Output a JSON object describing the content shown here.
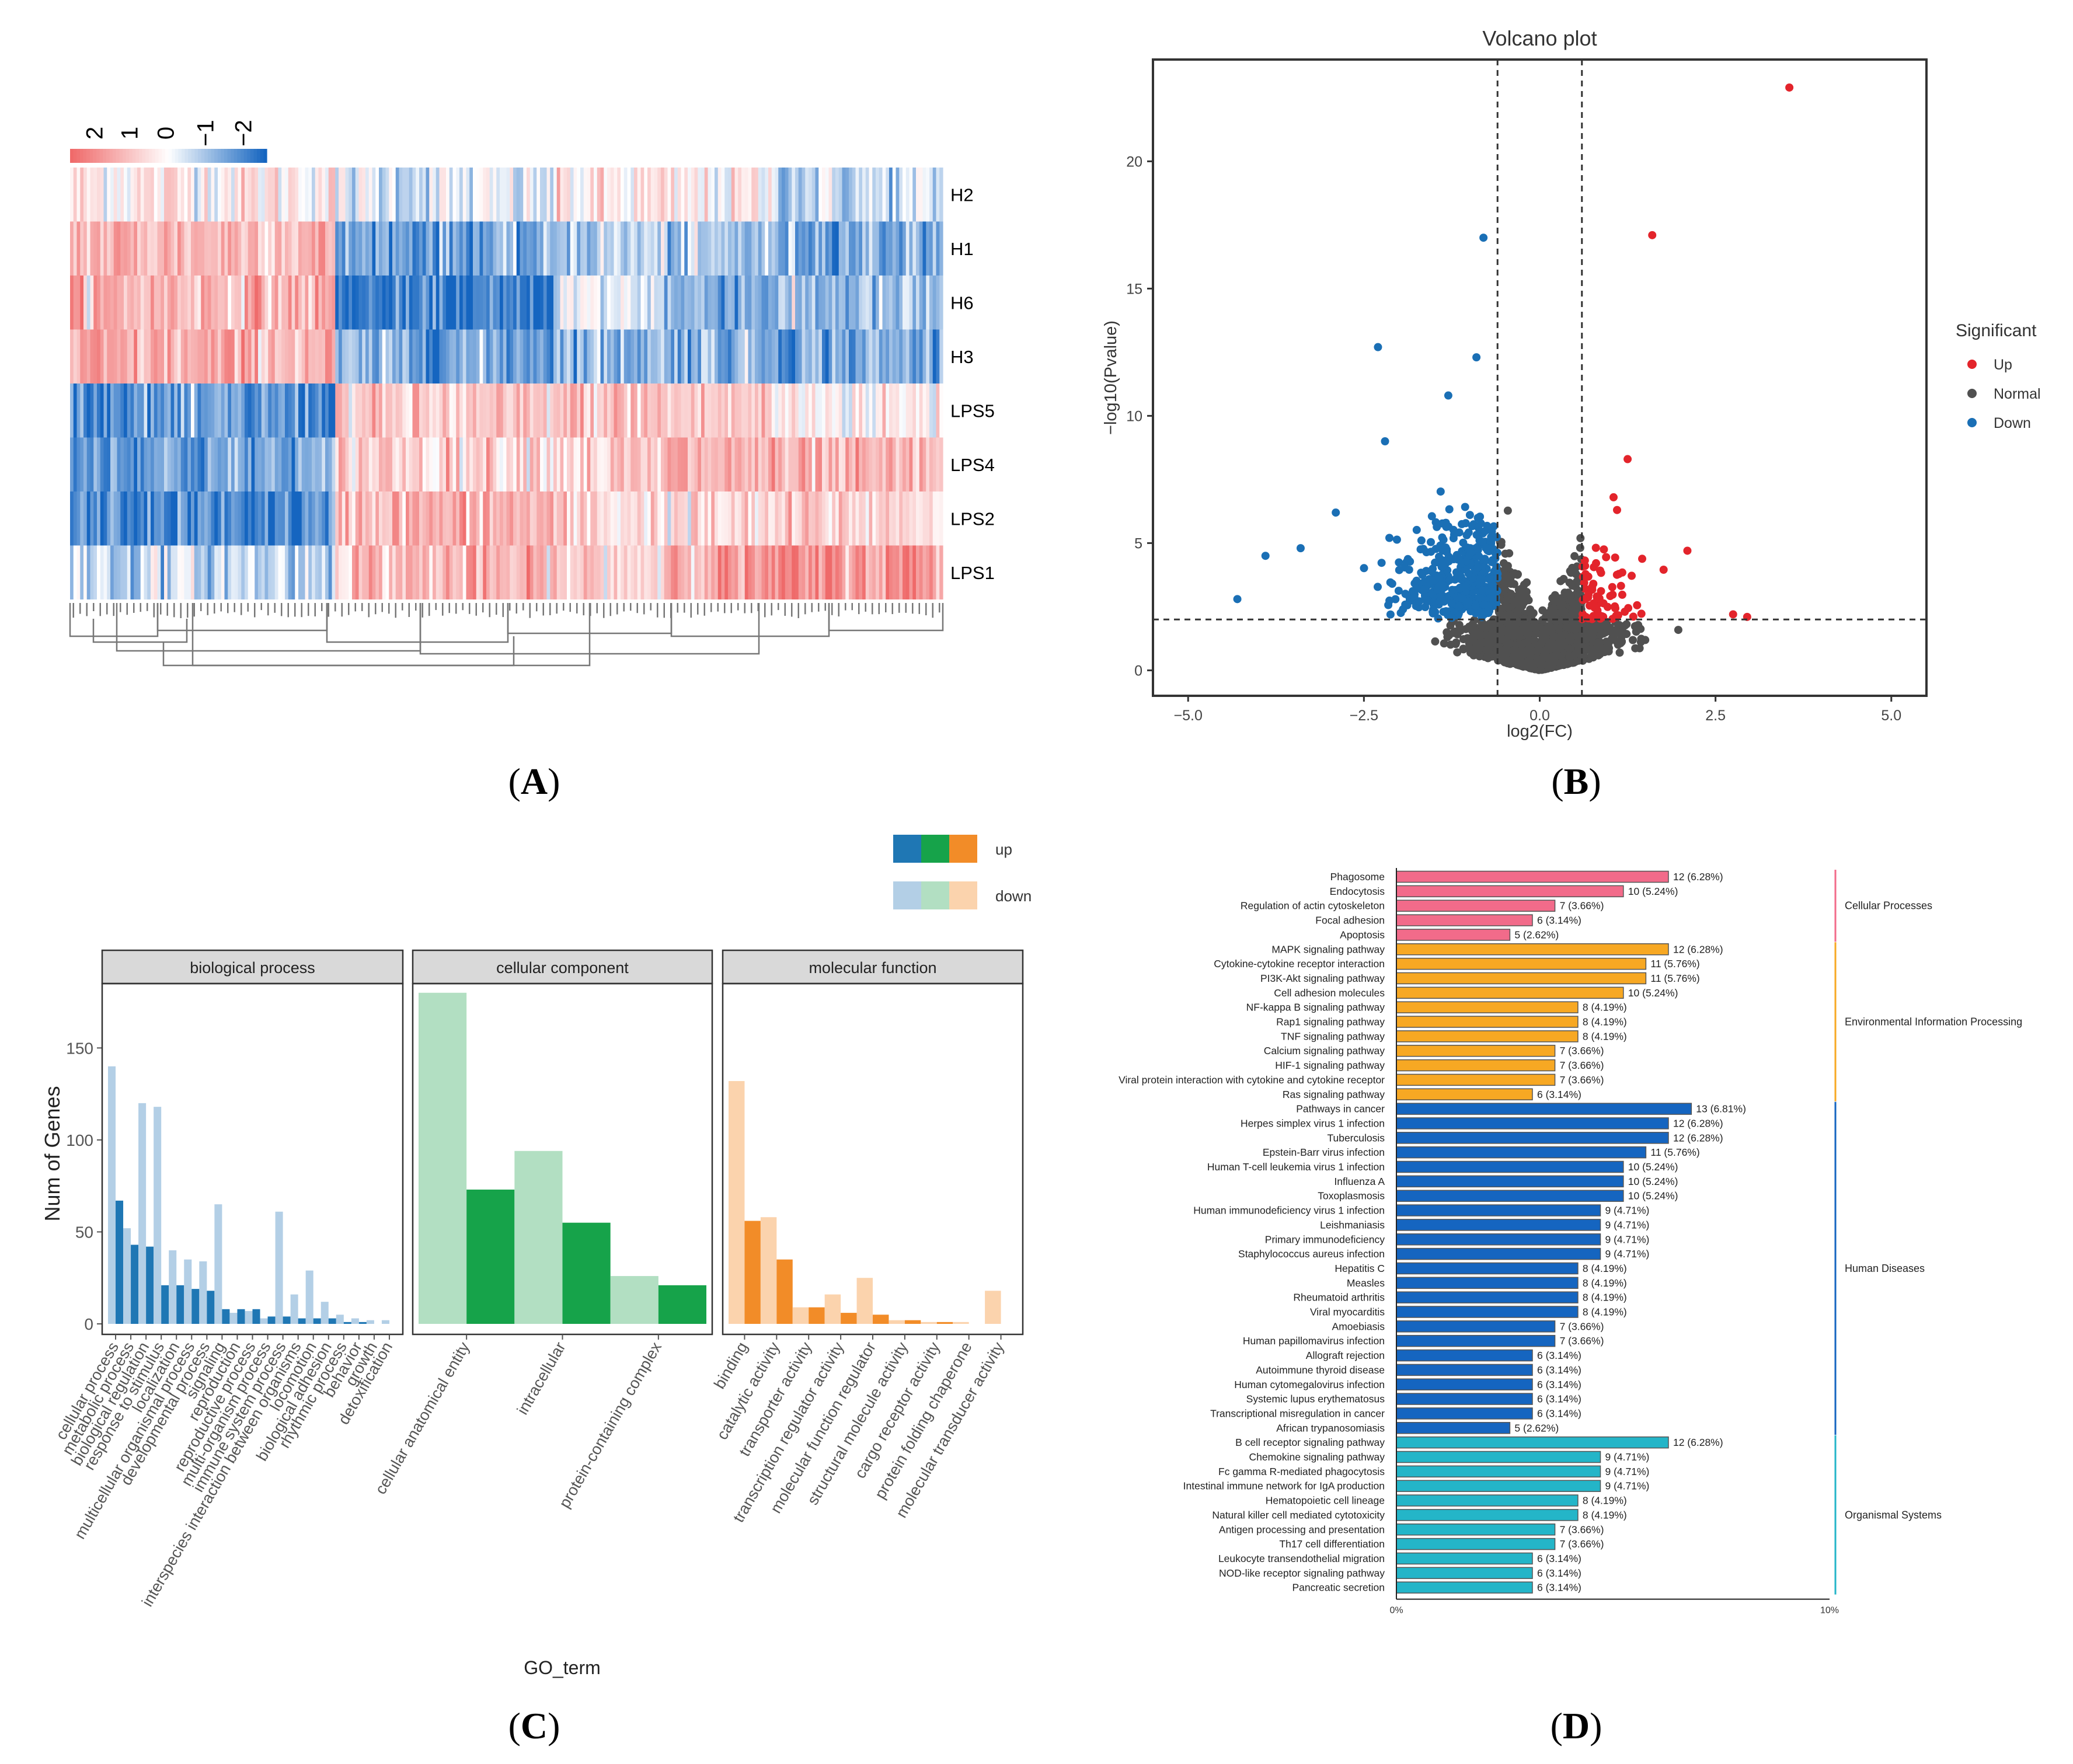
{
  "panel_labels": {
    "a": "A",
    "b": "B",
    "c": "C",
    "d": "D"
  },
  "colors": {
    "up": "#e3242b",
    "normal": "#505050",
    "down": "#1a6fb5",
    "heat_hi": "#ef6a6a",
    "heat_mid": "#ffffff",
    "heat_lo": "#1565c0",
    "bp_up": "#1f77b4",
    "bp_down": "#b3cfe6",
    "cc_up": "#16a34a",
    "cc_down": "#b2dfc2",
    "mf_up": "#f28c28",
    "mf_down": "#fbd3ad",
    "kegg_cell": "#f26b8a",
    "kegg_env": "#f7a823",
    "kegg_hd": "#1565c0",
    "kegg_org": "#24b5c8"
  },
  "chart_data": [
    {
      "type": "heatmap",
      "panel": "A",
      "rows": [
        "H2",
        "H1",
        "H6",
        "H3",
        "LPS5",
        "LPS4",
        "LPS2",
        "LPS1"
      ],
      "color_scale_ticks": [
        "2",
        "1",
        "0",
        "−1",
        "−2"
      ],
      "vmin": -2,
      "vmax": 2,
      "n_columns": 260
    },
    {
      "type": "scatter",
      "panel": "B",
      "title": "Volcano plot",
      "xlabel": "log2(FC)",
      "ylabel": "−log10(Pvalue)",
      "xlim": [
        -5.5,
        5.5
      ],
      "ylim": [
        -1,
        24
      ],
      "xticks": [
        "−5.0",
        "−2.5",
        "0.0",
        "2.5",
        "5.0"
      ],
      "xtick_values": [
        -5,
        -2.5,
        0,
        2.5,
        5
      ],
      "yticks": [
        "0",
        "5",
        "10",
        "15",
        "20"
      ],
      "ytick_values": [
        0,
        5,
        10,
        15,
        20
      ],
      "thresholds": {
        "x": [
          -0.6,
          0.6
        ],
        "y": 2
      },
      "legend_title": "Significant",
      "legend": [
        "Up",
        "Normal",
        "Down"
      ],
      "labeled_points": {
        "up": [
          [
            3.55,
            22.9
          ],
          [
            1.6,
            17.1
          ],
          [
            1.25,
            8.3
          ],
          [
            2.1,
            4.7
          ],
          [
            2.75,
            2.2
          ],
          [
            2.95,
            2.1
          ],
          [
            1.05,
            6.8
          ],
          [
            1.1,
            6.3
          ]
        ],
        "down": [
          [
            -0.8,
            17.0
          ],
          [
            -2.3,
            12.7
          ],
          [
            -0.9,
            12.3
          ],
          [
            -1.3,
            10.8
          ],
          [
            -2.2,
            9.0
          ],
          [
            -3.4,
            4.8
          ],
          [
            -3.9,
            4.5
          ],
          [
            -4.3,
            2.8
          ],
          [
            -2.9,
            6.2
          ]
        ]
      }
    },
    {
      "type": "bar",
      "panel": "C",
      "ylabel": "Num of Genes",
      "xlabel": "GO_term",
      "ylim": [
        0,
        185
      ],
      "yticks": [
        "0",
        "50",
        "100",
        "150"
      ],
      "ytick_values": [
        0,
        50,
        100,
        150
      ],
      "legend": [
        "up",
        "down"
      ],
      "facets": [
        {
          "name": "biological process",
          "categories": [
            "cellular process",
            "metabolic process",
            "biological regulation",
            "response to stimulus",
            "localization",
            "multicellular organismal process",
            "developmental process",
            "signaling",
            "reproduction",
            "reproductive process",
            "multi-organism process",
            "immune system process",
            "interspecies interaction between organisms",
            "locomotion",
            "biological adhesion",
            "rhythmic process",
            "behavior",
            "growth",
            "detoxification"
          ],
          "series": [
            {
              "name": "up",
              "values": [
                67,
                43,
                42,
                21,
                21,
                19,
                18,
                8,
                8,
                8,
                4,
                4,
                3,
                3,
                3,
                1,
                1,
                0,
                0
              ]
            },
            {
              "name": "down",
              "values": [
                140,
                52,
                120,
                118,
                40,
                35,
                34,
                65,
                6,
                7,
                3,
                61,
                16,
                29,
                12,
                5,
                3,
                2,
                2
              ]
            }
          ]
        },
        {
          "name": "cellular component",
          "categories": [
            "cellular anatomical entity",
            "intracellular",
            "protein-containing complex"
          ],
          "series": [
            {
              "name": "up",
              "values": [
                73,
                55,
                21
              ]
            },
            {
              "name": "down",
              "values": [
                180,
                94,
                26
              ]
            }
          ]
        },
        {
          "name": "molecular function",
          "categories": [
            "binding",
            "catalytic activity",
            "transporter activity",
            "transcription regulator activity",
            "molecular function regulator",
            "structural molecule activity",
            "cargo receptor activity",
            "protein folding chaperone",
            "molecular transducer activity"
          ],
          "series": [
            {
              "name": "up",
              "values": [
                56,
                35,
                9,
                6,
                5,
                2,
                1,
                0,
                0
              ]
            },
            {
              "name": "down",
              "values": [
                132,
                58,
                9,
                16,
                25,
                2,
                1,
                1,
                18
              ]
            }
          ]
        }
      ]
    },
    {
      "type": "bar",
      "orientation": "horizontal",
      "panel": "D",
      "x_axis_labels": [
        "0%",
        "10%"
      ],
      "xlim_percent": [
        0,
        10
      ],
      "groups": [
        {
          "name": "Cellular Processes",
          "color": "kegg_cell",
          "items": [
            {
              "label": "Phagosome",
              "count": 12,
              "percent": 6.28,
              "text": "12 (6.28%)"
            },
            {
              "label": "Endocytosis",
              "count": 10,
              "percent": 5.24,
              "text": "10 (5.24%)"
            },
            {
              "label": "Regulation of actin cytoskeleton",
              "count": 7,
              "percent": 3.66,
              "text": "7 (3.66%)"
            },
            {
              "label": "Focal adhesion",
              "count": 6,
              "percent": 3.14,
              "text": "6 (3.14%)"
            },
            {
              "label": "Apoptosis",
              "count": 5,
              "percent": 2.62,
              "text": "5 (2.62%)"
            }
          ]
        },
        {
          "name": "Environmental Information Processing",
          "color": "kegg_env",
          "items": [
            {
              "label": "MAPK signaling pathway",
              "count": 12,
              "percent": 6.28,
              "text": "12 (6.28%)"
            },
            {
              "label": "Cytokine-cytokine receptor interaction",
              "count": 11,
              "percent": 5.76,
              "text": "11 (5.76%)"
            },
            {
              "label": "PI3K-Akt signaling pathway",
              "count": 11,
              "percent": 5.76,
              "text": "11 (5.76%)"
            },
            {
              "label": "Cell adhesion molecules",
              "count": 10,
              "percent": 5.24,
              "text": "10 (5.24%)"
            },
            {
              "label": "NF-kappa B signaling pathway",
              "count": 8,
              "percent": 4.19,
              "text": "8 (4.19%)"
            },
            {
              "label": "Rap1 signaling pathway",
              "count": 8,
              "percent": 4.19,
              "text": "8 (4.19%)"
            },
            {
              "label": "TNF signaling pathway",
              "count": 8,
              "percent": 4.19,
              "text": "8 (4.19%)"
            },
            {
              "label": "Calcium signaling pathway",
              "count": 7,
              "percent": 3.66,
              "text": "7 (3.66%)"
            },
            {
              "label": "HIF-1 signaling pathway",
              "count": 7,
              "percent": 3.66,
              "text": "7 (3.66%)"
            },
            {
              "label": "Viral protein interaction with cytokine and cytokine receptor",
              "count": 7,
              "percent": 3.66,
              "text": "7 (3.66%)"
            },
            {
              "label": "Ras signaling pathway",
              "count": 6,
              "percent": 3.14,
              "text": "6 (3.14%)"
            }
          ]
        },
        {
          "name": "Human Diseases",
          "color": "kegg_hd",
          "items": [
            {
              "label": "Pathways in cancer",
              "count": 13,
              "percent": 6.81,
              "text": "13 (6.81%)"
            },
            {
              "label": "Herpes simplex virus 1 infection",
              "count": 12,
              "percent": 6.28,
              "text": "12 (6.28%)"
            },
            {
              "label": "Tuberculosis",
              "count": 12,
              "percent": 6.28,
              "text": "12 (6.28%)"
            },
            {
              "label": "Epstein-Barr virus infection",
              "count": 11,
              "percent": 5.76,
              "text": "11 (5.76%)"
            },
            {
              "label": "Human T-cell leukemia virus 1 infection",
              "count": 10,
              "percent": 5.24,
              "text": "10 (5.24%)"
            },
            {
              "label": "Influenza A",
              "count": 10,
              "percent": 5.24,
              "text": "10 (5.24%)"
            },
            {
              "label": "Toxoplasmosis",
              "count": 10,
              "percent": 5.24,
              "text": "10 (5.24%)"
            },
            {
              "label": "Human immunodeficiency virus 1 infection",
              "count": 9,
              "percent": 4.71,
              "text": "9 (4.71%)"
            },
            {
              "label": "Leishmaniasis",
              "count": 9,
              "percent": 4.71,
              "text": "9 (4.71%)"
            },
            {
              "label": "Primary immunodeficiency",
              "count": 9,
              "percent": 4.71,
              "text": "9 (4.71%)"
            },
            {
              "label": "Staphylococcus aureus infection",
              "count": 9,
              "percent": 4.71,
              "text": "9 (4.71%)"
            },
            {
              "label": "Hepatitis C",
              "count": 8,
              "percent": 4.19,
              "text": "8 (4.19%)"
            },
            {
              "label": "Measles",
              "count": 8,
              "percent": 4.19,
              "text": "8 (4.19%)"
            },
            {
              "label": "Rheumatoid arthritis",
              "count": 8,
              "percent": 4.19,
              "text": "8 (4.19%)"
            },
            {
              "label": "Viral myocarditis",
              "count": 8,
              "percent": 4.19,
              "text": "8 (4.19%)"
            },
            {
              "label": "Amoebiasis",
              "count": 7,
              "percent": 3.66,
              "text": "7 (3.66%)"
            },
            {
              "label": "Human papillomavirus infection",
              "count": 7,
              "percent": 3.66,
              "text": "7 (3.66%)"
            },
            {
              "label": "Allograft rejection",
              "count": 6,
              "percent": 3.14,
              "text": "6 (3.14%)"
            },
            {
              "label": "Autoimmune thyroid disease",
              "count": 6,
              "percent": 3.14,
              "text": "6 (3.14%)"
            },
            {
              "label": "Human cytomegalovirus infection",
              "count": 6,
              "percent": 3.14,
              "text": "6 (3.14%)"
            },
            {
              "label": "Systemic lupus erythematosus",
              "count": 6,
              "percent": 3.14,
              "text": "6 (3.14%)"
            },
            {
              "label": "Transcriptional misregulation in cancer",
              "count": 6,
              "percent": 3.14,
              "text": "6 (3.14%)"
            },
            {
              "label": "African trypanosomiasis",
              "count": 5,
              "percent": 2.62,
              "text": "5 (2.62%)"
            }
          ]
        },
        {
          "name": "Organismal Systems",
          "color": "kegg_org",
          "items": [
            {
              "label": "B cell receptor signaling pathway",
              "count": 12,
              "percent": 6.28,
              "text": "12 (6.28%)"
            },
            {
              "label": "Chemokine signaling pathway",
              "count": 9,
              "percent": 4.71,
              "text": "9 (4.71%)"
            },
            {
              "label": "Fc gamma R-mediated phagocytosis",
              "count": 9,
              "percent": 4.71,
              "text": "9 (4.71%)"
            },
            {
              "label": "Intestinal immune network for IgA production",
              "count": 9,
              "percent": 4.71,
              "text": "9 (4.71%)"
            },
            {
              "label": "Hematopoietic cell lineage",
              "count": 8,
              "percent": 4.19,
              "text": "8 (4.19%)"
            },
            {
              "label": "Natural killer cell mediated cytotoxicity",
              "count": 8,
              "percent": 4.19,
              "text": "8 (4.19%)"
            },
            {
              "label": "Antigen processing and presentation",
              "count": 7,
              "percent": 3.66,
              "text": "7 (3.66%)"
            },
            {
              "label": "Th17 cell differentiation",
              "count": 7,
              "percent": 3.66,
              "text": "7 (3.66%)"
            },
            {
              "label": "Leukocyte transendothelial migration",
              "count": 6,
              "percent": 3.14,
              "text": "6 (3.14%)"
            },
            {
              "label": "NOD-like receptor signaling pathway",
              "count": 6,
              "percent": 3.14,
              "text": "6 (3.14%)"
            },
            {
              "label": "Pancreatic secretion",
              "count": 6,
              "percent": 3.14,
              "text": "6 (3.14%)"
            }
          ]
        }
      ]
    }
  ]
}
